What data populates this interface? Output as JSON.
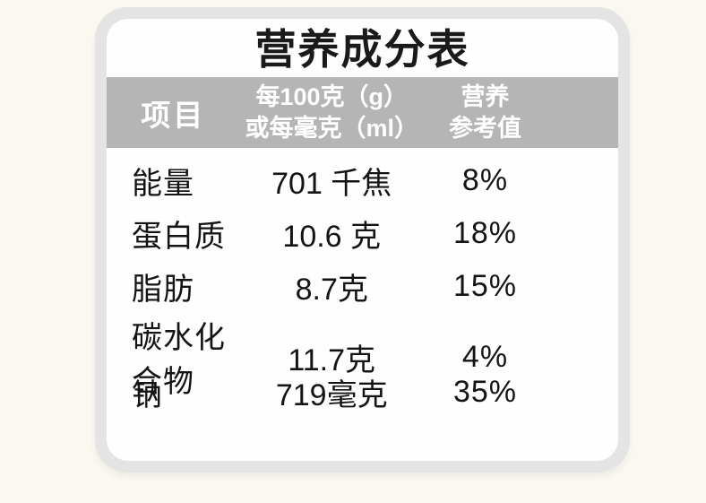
{
  "title": "营养成分表",
  "table": {
    "header": {
      "item": "项目",
      "amount_line1": "每100克（g）",
      "amount_line2": "或每毫克（ml）",
      "nrv_line1": "营养",
      "nrv_line2": "参考值"
    },
    "rows": [
      {
        "item": "能量",
        "amount": "701 千焦",
        "nrv": "8%"
      },
      {
        "item": "蛋白质",
        "amount": "10.6 克",
        "nrv": "18%"
      },
      {
        "item": "脂肪",
        "amount": "8.7克",
        "nrv": "15%"
      },
      {
        "item": "碳水化合物",
        "amount": "11.7克",
        "nrv": "4%"
      },
      {
        "item": "钠",
        "amount": "719毫克",
        "nrv": "35%"
      }
    ]
  },
  "colors": {
    "page_bg": "#fbf8f1",
    "card_ring": "#e4e4e4",
    "card_inner": "#fefefe",
    "header_band": "#b5b5b5",
    "header_text": "#ffffff",
    "title_text": "#1a1a1a",
    "body_text": "#141414"
  }
}
